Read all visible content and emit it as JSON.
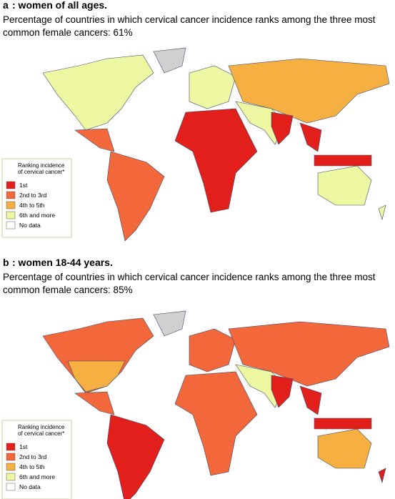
{
  "panels": [
    {
      "label": "a",
      "title": ": women of all ages.",
      "subtitle": [
        "Percentage of countries in which cervical cancer incidence ranks among the three most",
        "common female cancers: 61%"
      ],
      "legend": {
        "title": [
          "Ranking incidence",
          "of cervical cancer*"
        ],
        "items": [
          {
            "label": "1st",
            "color": "#e31f1c"
          },
          {
            "label": "2nd to 3rd",
            "color": "#f2683a"
          },
          {
            "label": "4th to 5th",
            "color": "#f5b041"
          },
          {
            "label": "6th and more",
            "color": "#eef7a2"
          },
          {
            "label": "No data",
            "color": "#ffffff"
          }
        ]
      }
    },
    {
      "label": "b",
      "title": ": women 18-44 years.",
      "subtitle": [
        "Percentage of countries in which cervical cancer incidence ranks among the three most",
        "common female cancers: 85%"
      ],
      "legend": {
        "title": [
          "Ranking incidence",
          "of cervical cancer*"
        ],
        "items": [
          {
            "label": "1st",
            "color": "#e31f1c"
          },
          {
            "label": "2nd to 3rd",
            "color": "#f2683a"
          },
          {
            "label": "4th to 5th",
            "color": "#f5b041"
          },
          {
            "label": "6th and more",
            "color": "#eef7a2"
          },
          {
            "label": "No data",
            "color": "#ffffff"
          }
        ]
      }
    }
  ]
}
